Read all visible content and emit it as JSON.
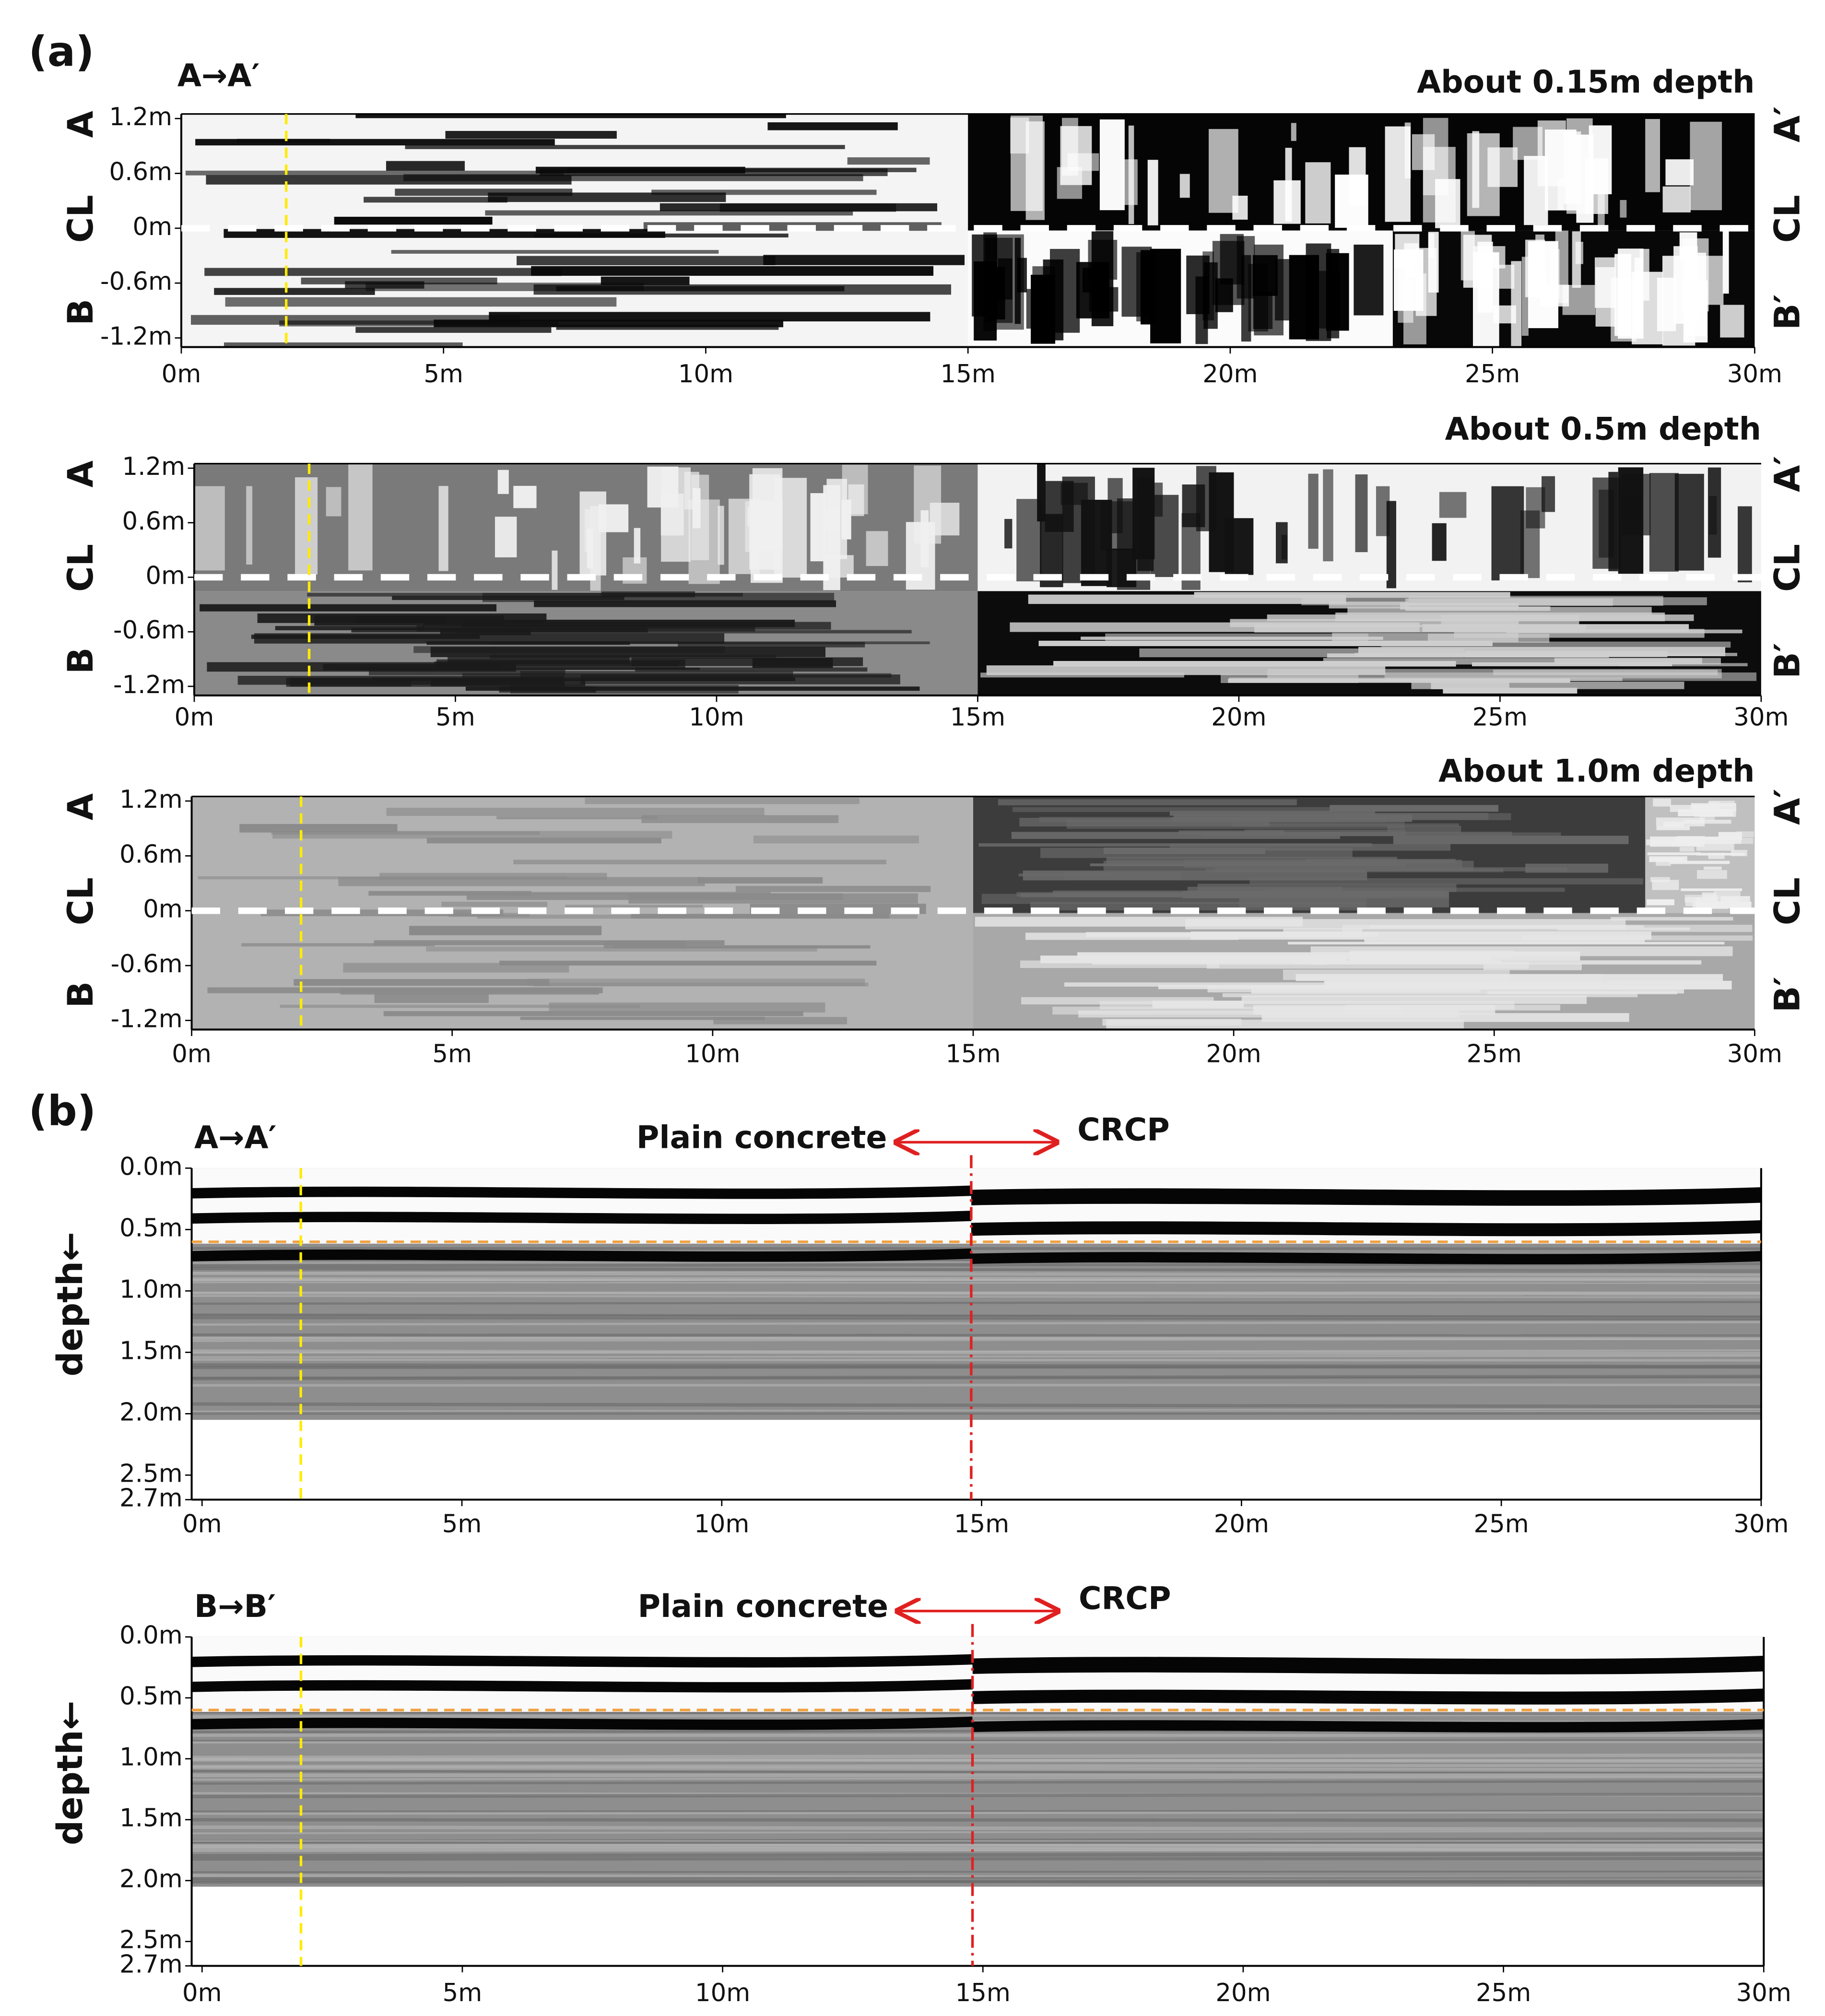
{
  "panel_a": {
    "label": "(a)",
    "route": "A→A′",
    "slices": [
      {
        "title": "About 0.15m depth",
        "side_left": [
          "A",
          "CL",
          "B"
        ],
        "side_right": [
          "A′",
          "CL",
          "B′"
        ],
        "xlim": [
          0,
          30
        ],
        "xticks": [
          {
            "value": 0,
            "label": "0m"
          },
          {
            "value": 5,
            "label": "5m"
          },
          {
            "value": 10,
            "label": "10m"
          },
          {
            "value": 15,
            "label": "15m"
          },
          {
            "value": 20,
            "label": "20m"
          },
          {
            "value": 25,
            "label": "25m"
          },
          {
            "value": 30,
            "label": "30m"
          }
        ],
        "ylim": [
          -1.3,
          1.25
        ],
        "yticks": [
          {
            "value": 1.2,
            "label": "1.2m"
          },
          {
            "value": 0.6,
            "label": "0.6m"
          },
          {
            "value": 0,
            "label": "0m"
          },
          {
            "value": -0.6,
            "label": "-0.6m"
          },
          {
            "value": -1.2,
            "label": "-1.2m"
          }
        ],
        "marker_x": 2.0
      },
      {
        "title": "About 0.5m depth",
        "side_left": [
          "A",
          "CL",
          "B"
        ],
        "side_right": [
          "A′",
          "CL",
          "B′"
        ],
        "xlim": [
          0,
          30
        ],
        "xticks": [
          {
            "value": 0,
            "label": "0m"
          },
          {
            "value": 5,
            "label": "5m"
          },
          {
            "value": 10,
            "label": "10m"
          },
          {
            "value": 15,
            "label": "15m"
          },
          {
            "value": 20,
            "label": "20m"
          },
          {
            "value": 25,
            "label": "25m"
          },
          {
            "value": 30,
            "label": "30m"
          }
        ],
        "ylim": [
          -1.3,
          1.25
        ],
        "yticks": [
          {
            "value": 1.2,
            "label": "1.2m"
          },
          {
            "value": 0.6,
            "label": "0.6m"
          },
          {
            "value": 0,
            "label": "0m"
          },
          {
            "value": -0.6,
            "label": "-0.6m"
          },
          {
            "value": -1.2,
            "label": "-1.2m"
          }
        ],
        "marker_x": 2.2
      },
      {
        "title": "About 1.0m depth",
        "side_left": [
          "A",
          "CL",
          "B"
        ],
        "side_right": [
          "A′",
          "CL",
          "B′"
        ],
        "xlim": [
          0,
          30
        ],
        "xticks": [
          {
            "value": 0,
            "label": "0m"
          },
          {
            "value": 5,
            "label": "5m"
          },
          {
            "value": 10,
            "label": "10m"
          },
          {
            "value": 15,
            "label": "15m"
          },
          {
            "value": 20,
            "label": "20m"
          },
          {
            "value": 25,
            "label": "25m"
          },
          {
            "value": 30,
            "label": "30m"
          }
        ],
        "ylim": [
          -1.3,
          1.25
        ],
        "yticks": [
          {
            "value": 1.2,
            "label": "1.2m"
          },
          {
            "value": 0.6,
            "label": "0.6m"
          },
          {
            "value": 0,
            "label": "0m"
          },
          {
            "value": -0.6,
            "label": "-0.6m"
          },
          {
            "value": -1.2,
            "label": "-1.2m"
          }
        ],
        "marker_x": 2.1
      }
    ]
  },
  "panel_b": {
    "label": "(b)",
    "profiles": [
      {
        "route": "A→A′",
        "y_label": "depth←",
        "left_zone": "Plain concrete",
        "right_zone": "CRCP",
        "xlim": [
          -0.2,
          30
        ],
        "xticks": [
          {
            "value": 0,
            "label": "0m"
          },
          {
            "value": 5,
            "label": "5m"
          },
          {
            "value": 10,
            "label": "10m"
          },
          {
            "value": 15,
            "label": "15m"
          },
          {
            "value": 20,
            "label": "20m"
          },
          {
            "value": 25,
            "label": "25m"
          },
          {
            "value": 30,
            "label": "30m"
          }
        ],
        "ylim": [
          2.7,
          0
        ],
        "image_ylim": [
          2.05,
          0
        ],
        "yticks": [
          {
            "value": 0,
            "label": "0.0m"
          },
          {
            "value": 0.5,
            "label": "0.5m"
          },
          {
            "value": 1,
            "label": "1.0m"
          },
          {
            "value": 1.5,
            "label": "1.5m"
          },
          {
            "value": 2,
            "label": "2.0m"
          },
          {
            "value": 2.5,
            "label": "2.5m"
          },
          {
            "value": 2.7,
            "label": "2.7m"
          }
        ],
        "boundary_x": 14.8,
        "marker_x": 1.9,
        "reference_depth": 0.6
      },
      {
        "route": "B→B′",
        "y_label": "depth←",
        "left_zone": "Plain concrete",
        "right_zone": "CRCP",
        "xlim": [
          -0.2,
          30
        ],
        "xticks": [
          {
            "value": 0,
            "label": "0m"
          },
          {
            "value": 5,
            "label": "5m"
          },
          {
            "value": 10,
            "label": "10m"
          },
          {
            "value": 15,
            "label": "15m"
          },
          {
            "value": 20,
            "label": "20m"
          },
          {
            "value": 25,
            "label": "25m"
          },
          {
            "value": 30,
            "label": "30m"
          }
        ],
        "ylim": [
          2.7,
          0
        ],
        "image_ylim": [
          2.05,
          0
        ],
        "yticks": [
          {
            "value": 0,
            "label": "0.0m"
          },
          {
            "value": 0.5,
            "label": "0.5m"
          },
          {
            "value": 1,
            "label": "1.0m"
          },
          {
            "value": 1.5,
            "label": "1.5m"
          },
          {
            "value": 2,
            "label": "2.0m"
          },
          {
            "value": 2.5,
            "label": "2.5m"
          },
          {
            "value": 2.7,
            "label": "2.7m"
          }
        ],
        "boundary_x": 14.8,
        "marker_x": 1.9,
        "reference_depth": 0.6
      }
    ]
  }
}
